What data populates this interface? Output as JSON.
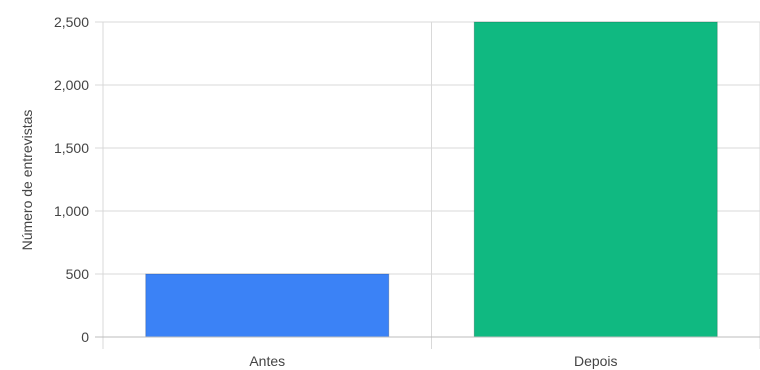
{
  "chart_data": {
    "type": "bar",
    "categories": [
      "Antes",
      "Depois"
    ],
    "values": [
      500,
      2500
    ],
    "colors": [
      "#3b82f6",
      "#10b981"
    ],
    "title": "",
    "xlabel": "",
    "ylabel": "Número de entrevistas",
    "ylim": [
      0,
      2500
    ],
    "yticks": [
      0,
      500,
      1000,
      1500,
      2000,
      2500
    ],
    "ytick_labels": [
      "0",
      "500",
      "1,000",
      "1,500",
      "2,000",
      "2,500"
    ],
    "grid": true,
    "legend": "none"
  }
}
